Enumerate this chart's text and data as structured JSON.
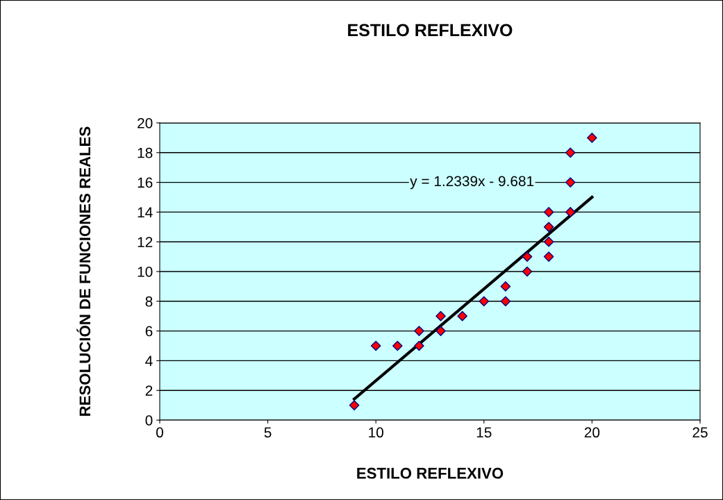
{
  "chart_data": {
    "type": "scatter",
    "title": "ESTILO REFLEXIVO",
    "xlabel": "ESTILO REFLEXIVO",
    "ylabel": "RESOLUCIÓN DE FUNCIONES REALES",
    "annotations": [
      "y = 1.2339x - 9.681"
    ],
    "xlim": [
      0,
      25
    ],
    "xticks": [
      0,
      5,
      10,
      15,
      20,
      25
    ],
    "ylim": [
      0,
      20
    ],
    "yticks": [
      0,
      2,
      4,
      6,
      8,
      10,
      12,
      14,
      16,
      18,
      20
    ],
    "grid": "y",
    "series": [
      {
        "marker": "diamond",
        "color": "#ff0000",
        "x": [
          9,
          10,
          11,
          12,
          12,
          13,
          13,
          14,
          15,
          16,
          16,
          17,
          17,
          18,
          18,
          18,
          18,
          19,
          19,
          19,
          20
        ],
        "values": [
          1,
          5,
          5,
          6,
          5,
          7,
          6,
          7,
          8,
          9,
          8,
          11,
          10,
          14,
          13,
          12,
          11,
          18,
          16,
          14,
          19
        ]
      },
      {
        "type": "line",
        "color": "#000000",
        "x": [
          9,
          20
        ],
        "values": [
          1.42,
          15.0
        ]
      }
    ]
  }
}
